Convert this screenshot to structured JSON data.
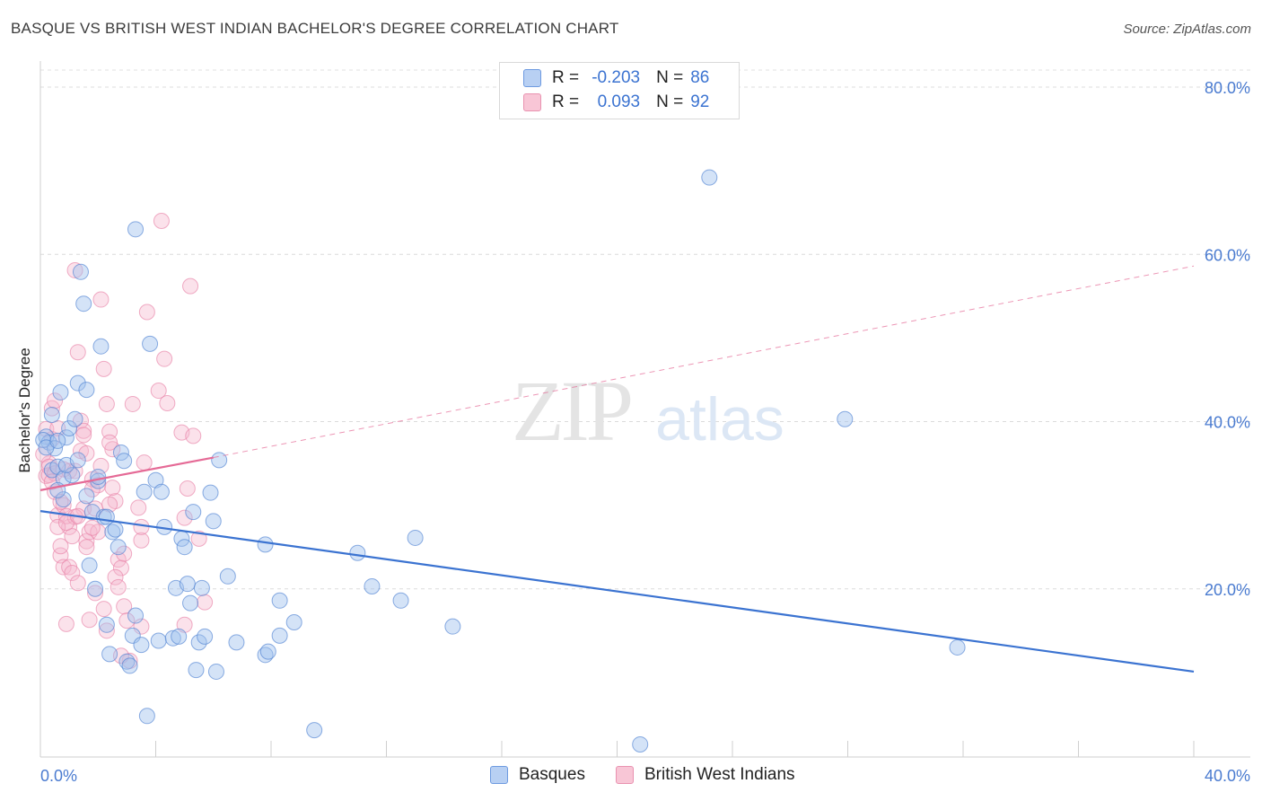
{
  "title": "BASQUE VS BRITISH WEST INDIAN BACHELOR'S DEGREE CORRELATION CHART",
  "source": "Source: ZipAtlas.com",
  "colors": {
    "blue": "#3b73d1",
    "pink": "#e56a96",
    "blue_fill": "#b8d0f3",
    "pink_fill": "#f8c6d6"
  },
  "legend_top": {
    "rows": [
      {
        "r_label": "R =",
        "r_value": "-0.203",
        "n_label": "N =",
        "n_value": "86"
      },
      {
        "r_label": "R =",
        "r_value": "0.093",
        "n_label": "N =",
        "n_value": "92"
      }
    ]
  },
  "legend_bottom": {
    "items": [
      "Basques",
      "British West Indians"
    ]
  },
  "chart_data": {
    "type": "scatter",
    "title": "BASQUE VS BRITISH WEST INDIAN BACHELOR'S DEGREE CORRELATION CHART",
    "xlabel": "",
    "ylabel": "Bachelor's Degree",
    "xlim": [
      0,
      40
    ],
    "ylim": [
      0,
      80
    ],
    "x_tick_labels": [
      "0.0%",
      "40.0%"
    ],
    "y_ticks": [
      20,
      40,
      60,
      80
    ],
    "y_tick_labels": [
      "20.0%",
      "40.0%",
      "60.0%",
      "80.0%"
    ],
    "watermark": {
      "zip": "ZIP",
      "atlas": "atlas"
    },
    "series": [
      {
        "name": "Basques",
        "color": "#3b73d1",
        "trend": {
          "x": [
            0,
            40
          ],
          "y": [
            29.3,
            10.1
          ],
          "dashed_to": null
        },
        "points": [
          [
            0.2,
            38.2
          ],
          [
            0.3,
            37.5
          ],
          [
            0.5,
            36.8
          ],
          [
            0.4,
            34.2
          ],
          [
            0.6,
            34.6
          ],
          [
            0.7,
            43.5
          ],
          [
            0.8,
            33.2
          ],
          [
            0.9,
            38.1
          ],
          [
            1.0,
            39.2
          ],
          [
            1.2,
            40.3
          ],
          [
            1.3,
            44.6
          ],
          [
            1.5,
            54.1
          ],
          [
            1.4,
            57.9
          ],
          [
            1.6,
            31.1
          ],
          [
            1.8,
            29.2
          ],
          [
            1.9,
            20.0
          ],
          [
            2.0,
            32.9
          ],
          [
            2.2,
            28.6
          ],
          [
            2.3,
            15.7
          ],
          [
            2.4,
            12.2
          ],
          [
            2.5,
            26.8
          ],
          [
            2.6,
            27.1
          ],
          [
            2.7,
            25.0
          ],
          [
            2.8,
            36.3
          ],
          [
            2.9,
            35.3
          ],
          [
            3.0,
            11.3
          ],
          [
            3.1,
            10.8
          ],
          [
            3.2,
            14.4
          ],
          [
            3.3,
            16.8
          ],
          [
            3.5,
            13.3
          ],
          [
            3.6,
            31.6
          ],
          [
            3.3,
            63.0
          ],
          [
            3.7,
            4.8
          ],
          [
            3.8,
            49.3
          ],
          [
            4.0,
            33.0
          ],
          [
            4.1,
            13.8
          ],
          [
            4.2,
            31.6
          ],
          [
            4.3,
            27.4
          ],
          [
            4.6,
            14.1
          ],
          [
            4.7,
            20.1
          ],
          [
            4.8,
            14.3
          ],
          [
            4.9,
            26.0
          ],
          [
            5.0,
            25.0
          ],
          [
            5.1,
            20.6
          ],
          [
            5.2,
            18.3
          ],
          [
            5.3,
            29.2
          ],
          [
            5.4,
            10.3
          ],
          [
            5.5,
            13.6
          ],
          [
            5.6,
            20.1
          ],
          [
            5.7,
            14.3
          ],
          [
            5.9,
            31.5
          ],
          [
            6.0,
            28.1
          ],
          [
            6.1,
            10.1
          ],
          [
            6.2,
            35.4
          ],
          [
            6.5,
            21.5
          ],
          [
            6.8,
            13.6
          ],
          [
            7.8,
            12.1
          ],
          [
            7.9,
            12.5
          ],
          [
            7.8,
            25.3
          ],
          [
            8.3,
            14.4
          ],
          [
            8.3,
            18.6
          ],
          [
            8.8,
            16.0
          ],
          [
            9.5,
            3.1
          ],
          [
            11.0,
            24.3
          ],
          [
            11.5,
            20.3
          ],
          [
            12.5,
            18.6
          ],
          [
            13.0,
            26.1
          ],
          [
            14.3,
            15.5
          ],
          [
            20.8,
            1.4
          ],
          [
            23.2,
            69.2
          ],
          [
            27.9,
            40.3
          ],
          [
            31.8,
            13.0
          ],
          [
            0.1,
            37.8
          ],
          [
            0.2,
            36.9
          ],
          [
            0.8,
            30.7
          ],
          [
            1.1,
            33.6
          ],
          [
            2.1,
            49.0
          ],
          [
            0.9,
            34.8
          ],
          [
            1.7,
            22.8
          ],
          [
            1.3,
            35.4
          ],
          [
            0.6,
            31.8
          ],
          [
            1.6,
            43.8
          ],
          [
            2.3,
            28.6
          ],
          [
            0.4,
            40.8
          ],
          [
            0.6,
            37.7
          ],
          [
            2.0,
            33.4
          ]
        ]
      },
      {
        "name": "British West Indians",
        "color": "#e56a96",
        "trend": {
          "x": [
            0,
            6
          ],
          "y": [
            31.8,
            35.7
          ],
          "dashed_to": [
            40,
            58.6
          ]
        },
        "points": [
          [
            0.2,
            33.5
          ],
          [
            0.3,
            35.0
          ],
          [
            0.4,
            37.9
          ],
          [
            0.5,
            31.6
          ],
          [
            0.6,
            28.8
          ],
          [
            0.7,
            24.0
          ],
          [
            0.8,
            22.6
          ],
          [
            0.9,
            15.8
          ],
          [
            1.0,
            27.4
          ],
          [
            1.1,
            26.3
          ],
          [
            1.2,
            58.1
          ],
          [
            1.3,
            48.3
          ],
          [
            1.4,
            36.5
          ],
          [
            1.5,
            29.6
          ],
          [
            1.6,
            25.7
          ],
          [
            1.7,
            26.8
          ],
          [
            1.8,
            33.1
          ],
          [
            1.9,
            19.5
          ],
          [
            2.0,
            32.4
          ],
          [
            2.1,
            54.6
          ],
          [
            2.2,
            46.3
          ],
          [
            2.3,
            42.1
          ],
          [
            2.4,
            38.8
          ],
          [
            2.5,
            36.7
          ],
          [
            2.6,
            30.5
          ],
          [
            2.7,
            23.5
          ],
          [
            2.8,
            22.5
          ],
          [
            2.9,
            17.9
          ],
          [
            3.0,
            16.2
          ],
          [
            3.1,
            11.4
          ],
          [
            3.2,
            42.1
          ],
          [
            3.4,
            29.7
          ],
          [
            3.6,
            35.1
          ],
          [
            3.5,
            25.8
          ],
          [
            3.5,
            15.5
          ],
          [
            3.5,
            27.4
          ],
          [
            3.7,
            53.1
          ],
          [
            4.1,
            43.7
          ],
          [
            4.2,
            64.0
          ],
          [
            4.3,
            47.5
          ],
          [
            4.4,
            42.2
          ],
          [
            4.9,
            38.7
          ],
          [
            5.0,
            28.5
          ],
          [
            5.1,
            32.0
          ],
          [
            5.2,
            56.2
          ],
          [
            5.3,
            38.3
          ],
          [
            5.5,
            26.0
          ],
          [
            5.7,
            18.4
          ],
          [
            5.0,
            15.7
          ],
          [
            0.1,
            36.1
          ],
          [
            0.2,
            39.1
          ],
          [
            0.3,
            33.6
          ],
          [
            0.4,
            41.6
          ],
          [
            0.5,
            42.5
          ],
          [
            0.6,
            39.2
          ],
          [
            0.7,
            25.1
          ],
          [
            0.8,
            30.0
          ],
          [
            0.9,
            28.7
          ],
          [
            1.0,
            22.6
          ],
          [
            1.1,
            21.9
          ],
          [
            1.2,
            28.6
          ],
          [
            1.3,
            20.7
          ],
          [
            1.4,
            40.1
          ],
          [
            1.5,
            38.9
          ],
          [
            1.6,
            36.2
          ],
          [
            1.7,
            16.3
          ],
          [
            1.8,
            31.9
          ],
          [
            1.9,
            29.6
          ],
          [
            2.0,
            26.8
          ],
          [
            2.2,
            17.6
          ],
          [
            2.3,
            15.0
          ],
          [
            2.4,
            30.1
          ],
          [
            2.5,
            32.1
          ],
          [
            2.6,
            21.4
          ],
          [
            2.7,
            20.2
          ],
          [
            2.8,
            12.0
          ],
          [
            2.9,
            24.2
          ],
          [
            1.0,
            34.1
          ],
          [
            0.3,
            34.6
          ],
          [
            0.6,
            27.4
          ],
          [
            0.9,
            27.9
          ],
          [
            1.5,
            38.4
          ],
          [
            0.5,
            33.8
          ],
          [
            1.2,
            34.1
          ],
          [
            0.8,
            34.3
          ],
          [
            2.1,
            34.7
          ],
          [
            0.4,
            32.8
          ],
          [
            1.6,
            25.0
          ],
          [
            2.4,
            37.5
          ],
          [
            0.7,
            30.4
          ],
          [
            1.8,
            27.3
          ],
          [
            1.3,
            28.7
          ]
        ]
      }
    ]
  }
}
